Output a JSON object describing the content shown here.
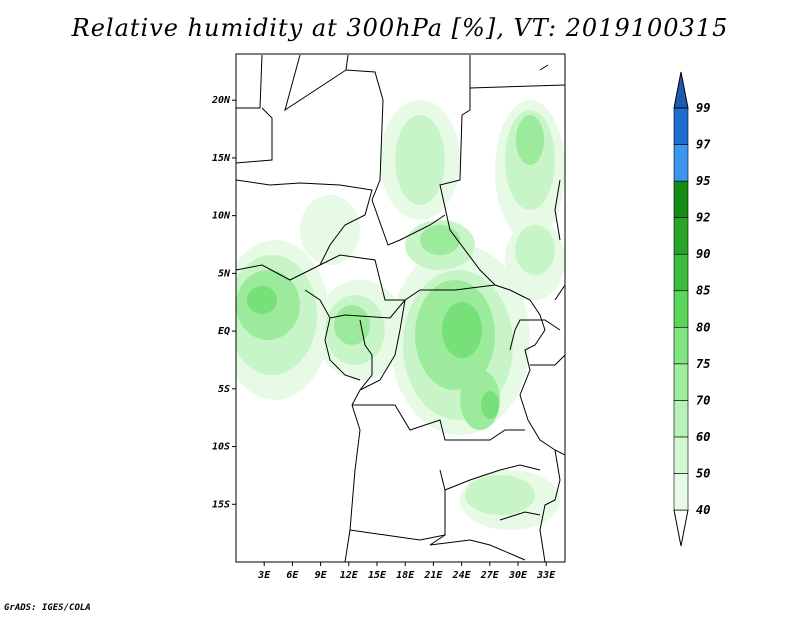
{
  "title": "Relative humidity at 300hPa [%], VT: 2019100315",
  "credit": "GrADS: IGES/COLA",
  "map": {
    "lat_range": [
      -20,
      24
    ],
    "lon_range": [
      0,
      35
    ],
    "lat_ticks": [
      {
        "value": 20,
        "label": "20N"
      },
      {
        "value": 15,
        "label": "15N"
      },
      {
        "value": 10,
        "label": "10N"
      },
      {
        "value": 5,
        "label": "5N"
      },
      {
        "value": 0,
        "label": "EQ"
      },
      {
        "value": -5,
        "label": "5S"
      },
      {
        "value": -10,
        "label": "10S"
      },
      {
        "value": -15,
        "label": "15S"
      }
    ],
    "lon_ticks": [
      {
        "value": 3,
        "label": "3E"
      },
      {
        "value": 6,
        "label": "6E"
      },
      {
        "value": 9,
        "label": "9E"
      },
      {
        "value": 12,
        "label": "12E"
      },
      {
        "value": 15,
        "label": "15E"
      },
      {
        "value": 18,
        "label": "18E"
      },
      {
        "value": 21,
        "label": "21E"
      },
      {
        "value": 24,
        "label": "24E"
      },
      {
        "value": 27,
        "label": "27E"
      },
      {
        "value": 30,
        "label": "30E"
      },
      {
        "value": 33,
        "label": "33E"
      }
    ]
  },
  "colorbar": {
    "levels": [
      {
        "label": "40",
        "color": "#ffffff"
      },
      {
        "label": "50",
        "color": "#e6fae6"
      },
      {
        "label": "60",
        "color": "#d2f7d2"
      },
      {
        "label": "70",
        "color": "#b8f2b8"
      },
      {
        "label": "75",
        "color": "#a0eda0"
      },
      {
        "label": "80",
        "color": "#80e680"
      },
      {
        "label": "85",
        "color": "#5ad75a"
      },
      {
        "label": "90",
        "color": "#3cbe3c"
      },
      {
        "label": "92",
        "color": "#28a528"
      },
      {
        "label": "95",
        "color": "#148c14"
      },
      {
        "label": "97",
        "color": "#3c96f0"
      },
      {
        "label": "99",
        "color": "#1e6ed2"
      }
    ],
    "over_color": "#1e5ab4"
  }
}
